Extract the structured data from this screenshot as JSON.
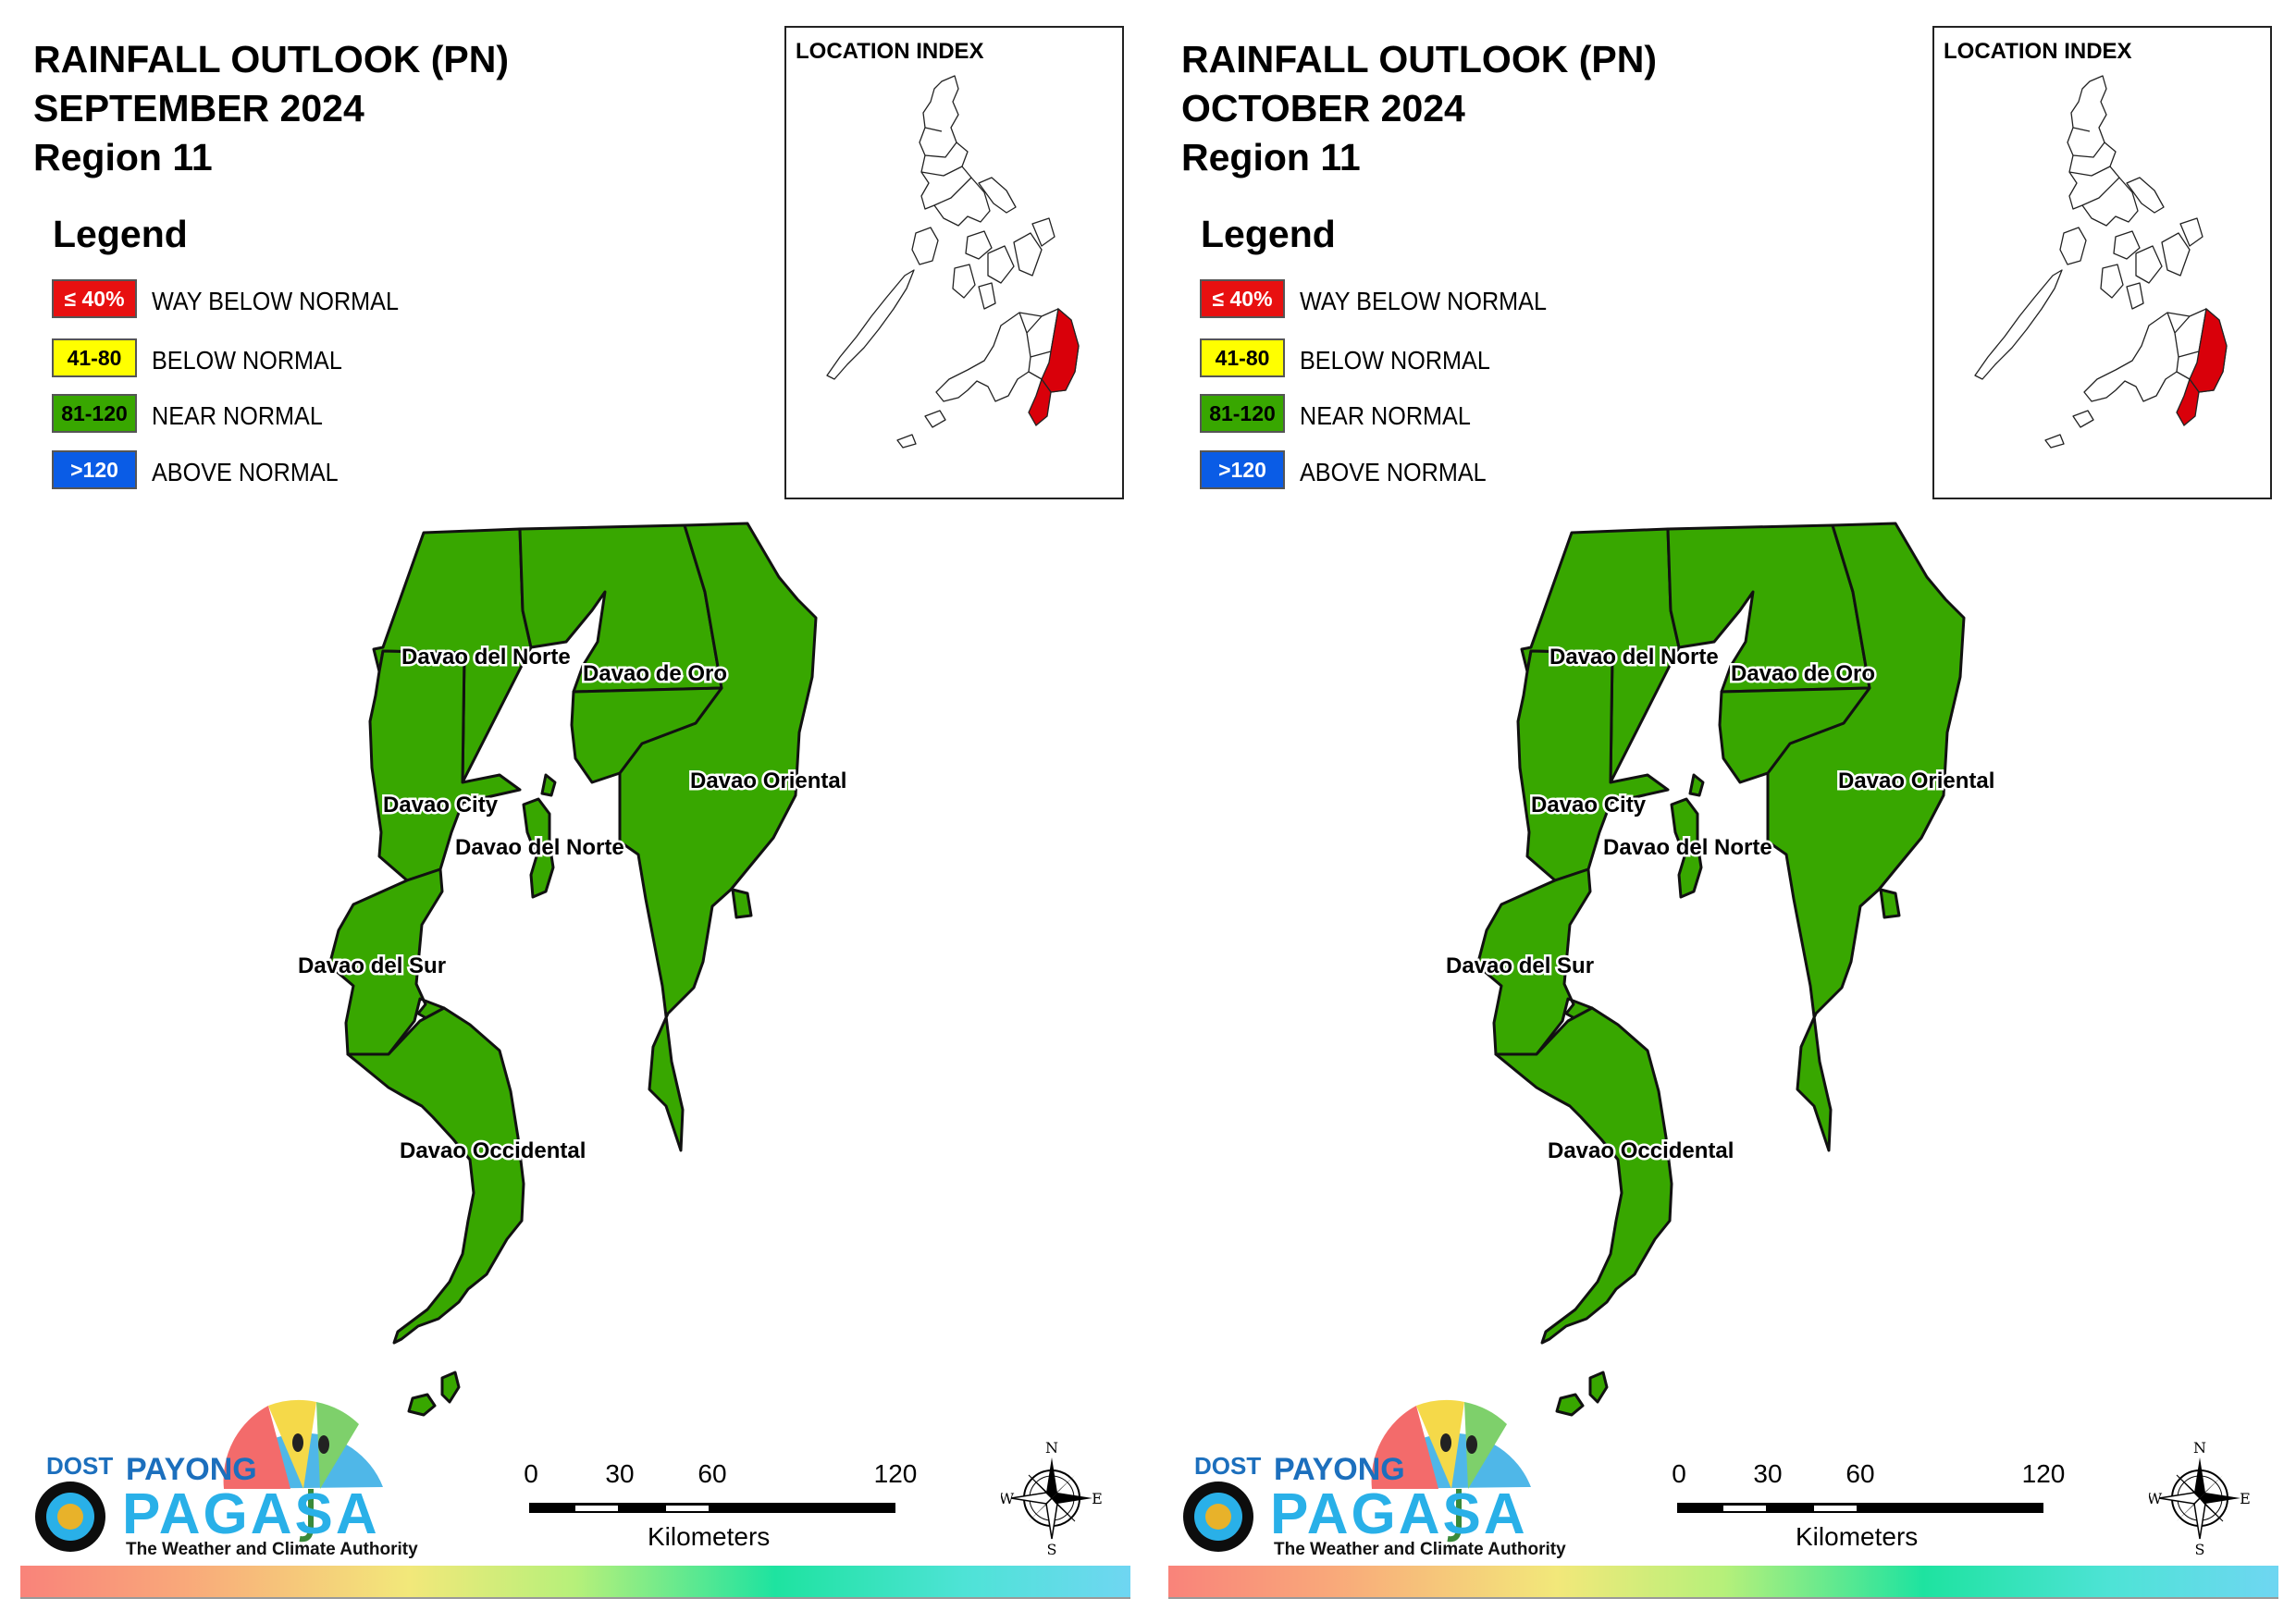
{
  "colors": {
    "way_below": "#e81010",
    "below": "#ffff00",
    "near": "#38a700",
    "above": "#0a5ce6",
    "map_fill": "#38a700",
    "map_border": "#111111",
    "highlight_region": "#d9000a"
  },
  "legend": {
    "title": "Legend",
    "items": [
      {
        "swatch": "≤ 40%",
        "label": "WAY BELOW NORMAL",
        "color": "#e81010",
        "text_color": "#ffffff"
      },
      {
        "swatch": "41-80",
        "label": "BELOW NORMAL",
        "color": "#ffff00",
        "text_color": "#000000"
      },
      {
        "swatch": "81-120",
        "label": "NEAR NORMAL",
        "color": "#38a700",
        "text_color": "#000000"
      },
      {
        "swatch": ">120",
        "label": "ABOVE NORMAL",
        "color": "#0a5ce6",
        "text_color": "#ffffff"
      }
    ]
  },
  "location_index": {
    "title": "LOCATION INDEX"
  },
  "map_labels": [
    "Davao del Norte",
    "Davao de Oro",
    "Davao Oriental",
    "Davao City",
    "Davao del Norte",
    "Davao del Sur",
    "Davao Occidental"
  ],
  "scale": {
    "ticks": [
      "0",
      "30",
      "60",
      "120"
    ],
    "unit": "Kilometers"
  },
  "compass": {
    "n": "N",
    "s": "S",
    "e": "E",
    "w": "W"
  },
  "logo": {
    "dost": "DOST",
    "payong": "PAYONG",
    "pagasa": "PAGASA",
    "tagline": "The Weather and Climate Authority"
  },
  "panels": [
    {
      "title_line1": "RAINFALL OUTLOOK (PN)",
      "title_line2": "SEPTEMBER 2024",
      "title_line3": "Region 11",
      "category": "NEAR NORMAL"
    },
    {
      "title_line1": "RAINFALL OUTLOOK (PN)",
      "title_line2": "OCTOBER 2024",
      "title_line3": "Region 11",
      "category": "NEAR NORMAL"
    }
  ]
}
